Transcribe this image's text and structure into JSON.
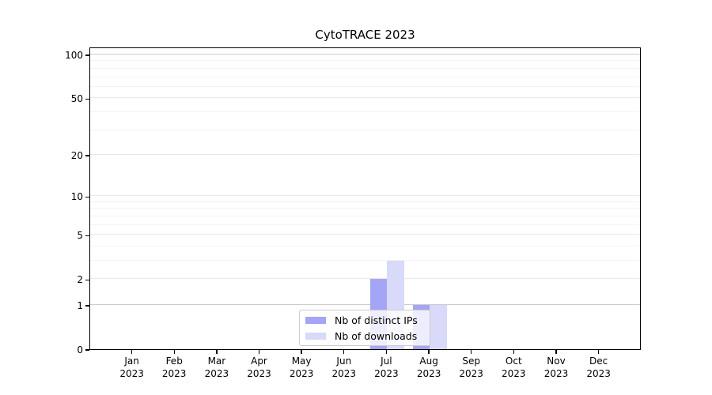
{
  "chart_data": {
    "type": "bar",
    "title": "CytoTRACE 2023",
    "categories": [
      "Jan 2023",
      "Feb 2023",
      "Mar 2023",
      "Apr 2023",
      "May 2023",
      "Jun 2023",
      "Jul 2023",
      "Aug 2023",
      "Sep 2023",
      "Oct 2023",
      "Nov 2023",
      "Dec 2023"
    ],
    "series": [
      {
        "key": "distinct-ips",
        "name": "Nb of distinct IPs",
        "color": "#a5a5f5",
        "values": [
          0,
          0,
          0,
          0,
          0,
          0,
          2,
          1,
          0,
          0,
          0,
          0
        ]
      },
      {
        "key": "downloads",
        "name": "Nb of downloads",
        "color": "#d9d9fa",
        "values": [
          0,
          0,
          0,
          0,
          0,
          0,
          3,
          1,
          0,
          0,
          0,
          0
        ]
      }
    ],
    "xlabel": "",
    "ylabel": "",
    "yscale": "log10(1+y)",
    "ylim": [
      0,
      113
    ],
    "y_ticks": [
      0,
      1,
      2,
      5,
      10,
      20,
      50,
      100
    ],
    "grid_major_values": [
      1,
      2,
      5,
      10,
      20,
      50,
      100
    ],
    "grid_minor_values": [
      3,
      4,
      6,
      7,
      8,
      9,
      30,
      40,
      60,
      70,
      80,
      90
    ],
    "grid_strong_values": [
      1,
      100
    ],
    "grid": "horizontal",
    "legend_position": "inside-bottom-center",
    "colors": {
      "frame": "#000000",
      "background": "#ffffff"
    }
  }
}
